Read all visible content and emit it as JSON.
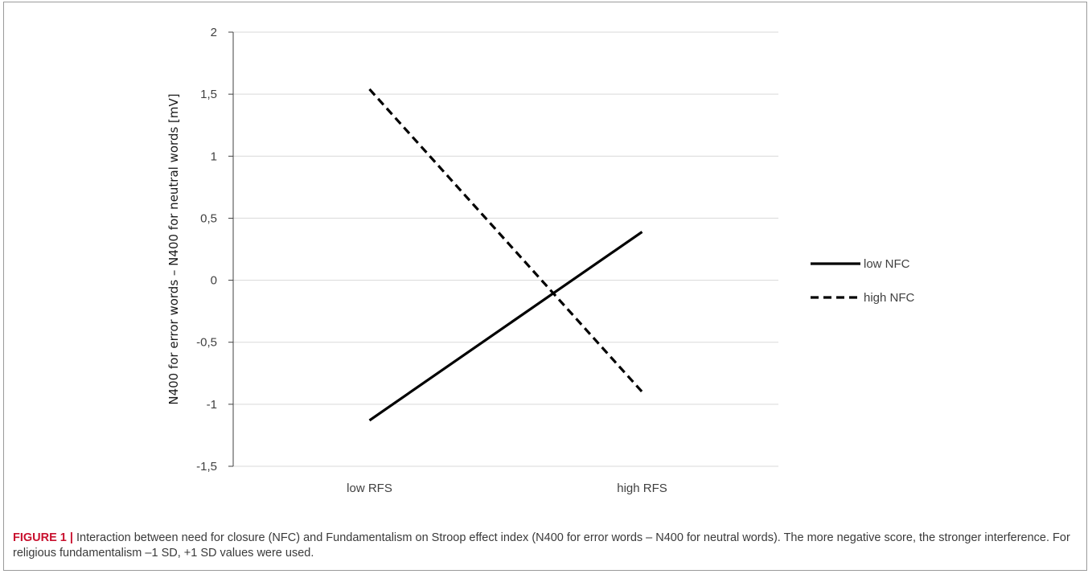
{
  "chart_data": {
    "type": "line",
    "categories": [
      "low RFS",
      "high RFS"
    ],
    "series": [
      {
        "name": "low NFC",
        "values": [
          -1.13,
          0.39
        ],
        "style": "solid",
        "color": "#000000"
      },
      {
        "name": "high NFC",
        "values": [
          1.54,
          -0.9
        ],
        "style": "dashed",
        "color": "#000000"
      }
    ],
    "ylabel": "N400 for error words – N400 for neutral words [mV]",
    "xlabel": "",
    "ylim": [
      -1.5,
      2
    ],
    "yticks": [
      "-1,5",
      "-1",
      "-0,5",
      "0",
      "0,5",
      "1",
      "1,5",
      "2"
    ],
    "grid": true,
    "legend_position": "right"
  },
  "caption": {
    "label": "FIGURE 1 |",
    "text": " Interaction between need for closure (NFC) and Fundamentalism on Stroop effect index (N400 for error words – N400 for neutral words). The more negative score, the stronger interference. For religious fundamentalism –1 SD, +1 SD values were used."
  }
}
